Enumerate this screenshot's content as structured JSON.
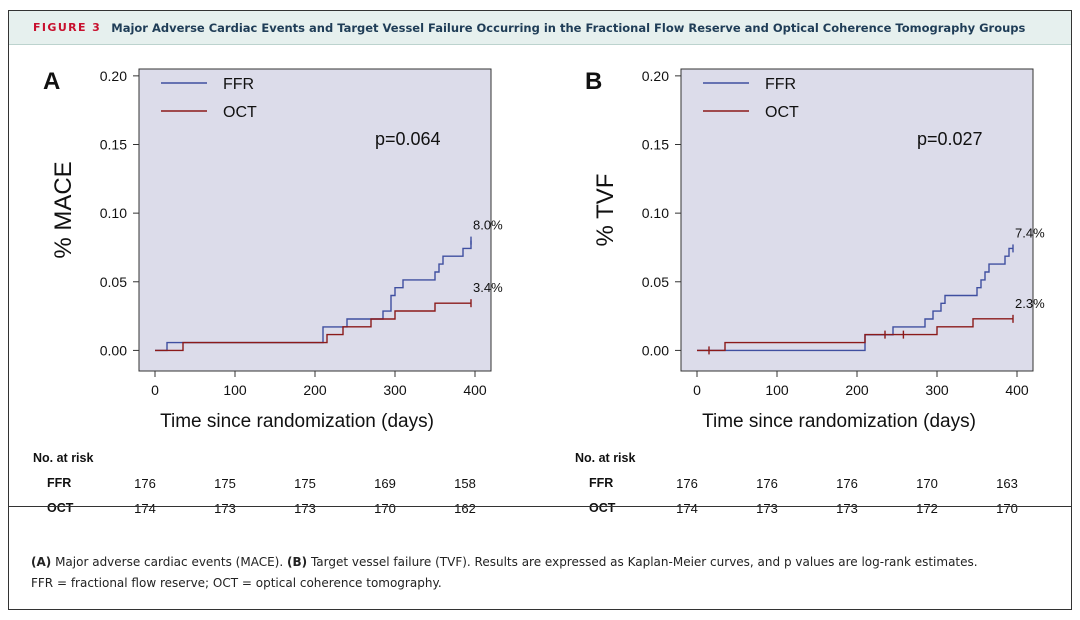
{
  "header": {
    "figure_label": "FIGURE 3",
    "title": "Major Adverse Cardiac Events and Target Vessel Failure Occurring in the Fractional Flow Reserve and Optical Coherence Tomography Groups"
  },
  "colors": {
    "ffr": "#3f4fa0",
    "oct": "#8b1a1a",
    "plot_bg": "#dcdcea",
    "figure_label": "#c8102e",
    "title": "#1f3d57"
  },
  "chart_data": [
    {
      "panel_label": "A",
      "type": "line",
      "step": true,
      "xlabel": "Time since randomization (days)",
      "ylabel": "% MACE",
      "xlim": [
        -20,
        420
      ],
      "ylim": [
        -0.015,
        0.205
      ],
      "xticks": [
        0,
        100,
        200,
        300,
        400
      ],
      "yticks": [
        "0.00",
        "0.05",
        "0.10",
        "0.15",
        "0.20"
      ],
      "p_value": "p=0.064",
      "legend": [
        "FFR",
        "OCT"
      ],
      "series": [
        {
          "name": "FFR",
          "end_label": "8.0%",
          "x": [
            0,
            15,
            210,
            240,
            285,
            295,
            300,
            310,
            350,
            355,
            360,
            385,
            395
          ],
          "y": [
            0,
            0.0057,
            0.0171,
            0.0229,
            0.0286,
            0.04,
            0.0457,
            0.0514,
            0.0571,
            0.0629,
            0.0686,
            0.0743,
            0.08
          ]
        },
        {
          "name": "OCT",
          "end_label": "3.4%",
          "x": [
            0,
            35,
            215,
            235,
            270,
            300,
            350,
            395
          ],
          "y": [
            0,
            0.0057,
            0.0115,
            0.0172,
            0.0229,
            0.0287,
            0.0344,
            0.0344
          ]
        }
      ],
      "censor_marks": [
        {
          "series": "FFR",
          "x": 395,
          "y": 0.08
        },
        {
          "series": "OCT",
          "x": 395,
          "y": 0.0344
        }
      ]
    },
    {
      "panel_label": "B",
      "type": "line",
      "step": true,
      "xlabel": "Time since randomization (days)",
      "ylabel": "% TVF",
      "xlim": [
        -20,
        420
      ],
      "ylim": [
        -0.015,
        0.205
      ],
      "xticks": [
        0,
        100,
        200,
        300,
        400
      ],
      "yticks": [
        "0.00",
        "0.05",
        "0.10",
        "0.15",
        "0.20"
      ],
      "p_value": "p=0.027",
      "legend": [
        "FFR",
        "OCT"
      ],
      "series": [
        {
          "name": "FFR",
          "end_label": "7.4%",
          "x": [
            0,
            210,
            245,
            285,
            295,
            305,
            310,
            350,
            355,
            360,
            365,
            385,
            390,
            395
          ],
          "y": [
            0,
            0.0114,
            0.0171,
            0.0229,
            0.0286,
            0.0343,
            0.04,
            0.0457,
            0.0514,
            0.0571,
            0.0629,
            0.0686,
            0.0743,
            0.0743
          ]
        },
        {
          "name": "OCT",
          "end_label": "2.3%",
          "x": [
            0,
            35,
            210,
            300,
            345,
            395
          ],
          "y": [
            0,
            0.0057,
            0.0115,
            0.0172,
            0.023,
            0.023
          ]
        }
      ],
      "censor_marks": [
        {
          "series": "FFR",
          "x": 395,
          "y": 0.0743
        },
        {
          "series": "OCT",
          "x": 395,
          "y": 0.023
        },
        {
          "series": "OCT",
          "x": 15,
          "y": 0
        },
        {
          "series": "OCT",
          "x": 235,
          "y": 0.0115
        },
        {
          "series": "OCT",
          "x": 258,
          "y": 0.0115
        }
      ]
    }
  ],
  "risk_tables": [
    {
      "title": "No. at risk",
      "rows": [
        {
          "label": "FFR",
          "values": [
            "176",
            "175",
            "175",
            "169",
            "158"
          ]
        },
        {
          "label": "OCT",
          "values": [
            "174",
            "173",
            "173",
            "170",
            "162"
          ]
        }
      ]
    },
    {
      "title": "No. at risk",
      "rows": [
        {
          "label": "FFR",
          "values": [
            "176",
            "176",
            "176",
            "170",
            "163"
          ]
        },
        {
          "label": "OCT",
          "values": [
            "174",
            "173",
            "173",
            "172",
            "170"
          ]
        }
      ]
    }
  ],
  "caption": {
    "a_label": "(A)",
    "a_text": " Major adverse cardiac events (MACE). ",
    "b_label": "(B)",
    "b_text": " Target vessel failure (TVF). Results are expressed as Kaplan-Meier curves, and p values are log-rank estimates.",
    "line2": "FFR = fractional flow reserve; OCT = optical coherence tomography."
  }
}
